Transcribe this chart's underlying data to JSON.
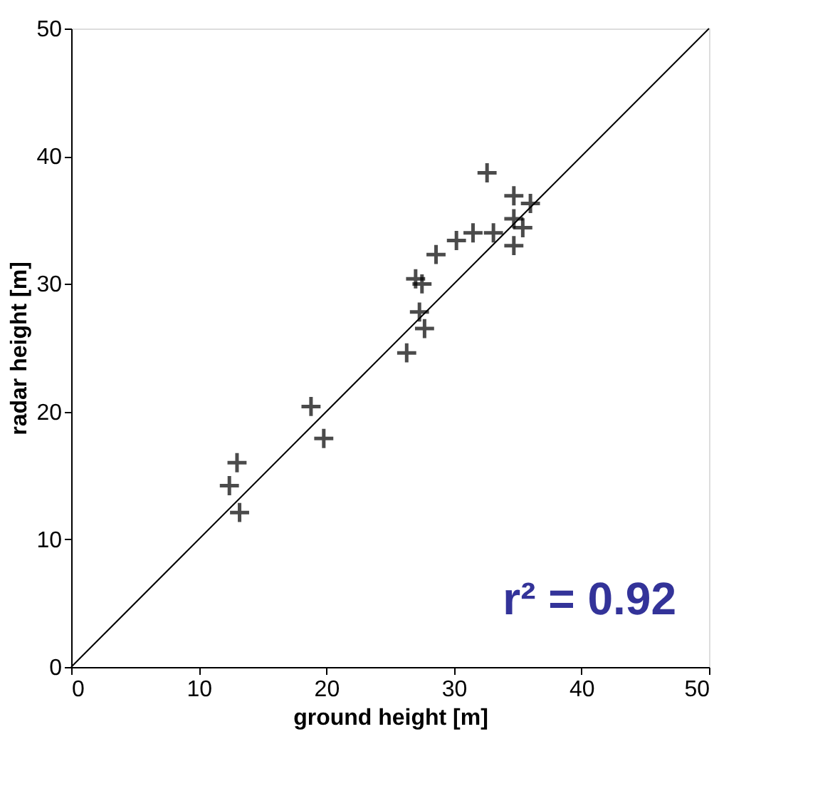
{
  "chart_data": {
    "type": "scatter",
    "xlabel": "ground height [m]",
    "ylabel": "radar height [m]",
    "xlim": [
      0,
      50
    ],
    "ylim": [
      0,
      50
    ],
    "xticks": [
      0,
      10,
      20,
      30,
      40,
      50
    ],
    "yticks": [
      0,
      10,
      20,
      30,
      40,
      50
    ],
    "grid": false,
    "marker": "cross",
    "series": [
      {
        "color": "#000000",
        "x": [
          12.4,
          13.0,
          13.2,
          18.8,
          19.8,
          26.3,
          27.7,
          27.3,
          27.0,
          27.5,
          28.6,
          30.2,
          31.5,
          33.1,
          32.6,
          34.7,
          36.0,
          34.7,
          35.4,
          34.7
        ],
        "values": [
          14.2,
          16.0,
          12.1,
          20.4,
          17.9,
          24.6,
          26.5,
          27.8,
          30.4,
          30.0,
          32.3,
          33.4,
          34.0,
          34.0,
          38.7,
          36.9,
          36.3,
          35.1,
          34.4,
          33.0
        ]
      },
      {
        "type": "line",
        "color": "#000000",
        "x": [
          0,
          50
        ],
        "values": [
          0,
          50
        ],
        "marker": "none"
      }
    ],
    "annotations": [
      "r² = 0.92"
    ]
  }
}
